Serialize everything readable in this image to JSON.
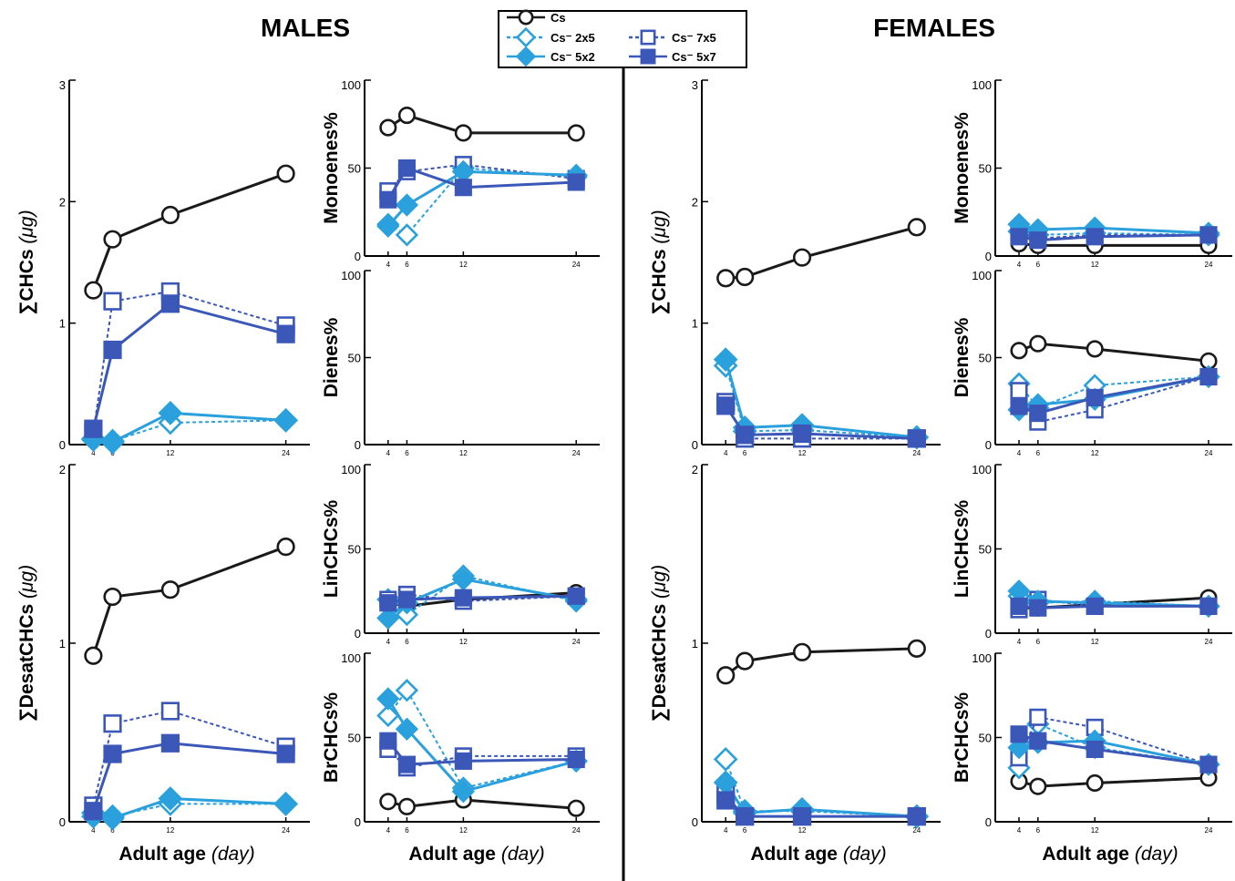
{
  "figure": {
    "titles": {
      "males": "MALES",
      "females": "FEMALES"
    },
    "x_axis_label": "Adult age",
    "x_axis_unit": "(day)"
  },
  "legend": {
    "entries": [
      "Cs",
      "Cs⁻ 2x5",
      "Cs⁻ 7x5",
      "Cs⁻ 5x2",
      "Cs⁻ 5x7"
    ]
  },
  "series_styles": [
    {
      "key": "Cs",
      "color": "#1a1a1a",
      "marker": "circle",
      "fill": false,
      "dashed": false
    },
    {
      "key": "2x5",
      "color": "#2aa0dc",
      "marker": "diamond",
      "fill": false,
      "dashed": true
    },
    {
      "key": "7x5",
      "color": "#3b57b8",
      "marker": "square",
      "fill": false,
      "dashed": true
    },
    {
      "key": "5x2",
      "color": "#2aa0dc",
      "marker": "diamond",
      "fill": true,
      "dashed": false
    },
    {
      "key": "5x7",
      "color": "#3b57b8",
      "marker": "square",
      "fill": true,
      "dashed": false
    }
  ],
  "chart_data": [
    {
      "type": "line",
      "panel": "males-total-chcs",
      "ylabel": "∑CHCs",
      "yunit": "(μg)",
      "x": [
        4,
        6,
        12,
        24
      ],
      "ylim": [
        0,
        3
      ],
      "yticks": [
        "0",
        "1",
        "2",
        "3"
      ],
      "series": [
        {
          "name": "Cs",
          "values": [
            1.27,
            1.69,
            1.89,
            2.23
          ]
        },
        {
          "name": "Cs⁻ 2x5",
          "values": [
            0.05,
            0.03,
            0.18,
            0.2
          ]
        },
        {
          "name": "Cs⁻ 7x5",
          "values": [
            0.1,
            1.18,
            1.26,
            0.98
          ]
        },
        {
          "name": "Cs⁻ 5x2",
          "values": [
            0.04,
            0.02,
            0.26,
            0.2
          ]
        },
        {
          "name": "Cs⁻ 5x7",
          "values": [
            0.13,
            0.78,
            1.16,
            0.91
          ]
        }
      ]
    },
    {
      "type": "line",
      "panel": "males-monoenes",
      "ylabel": "Monoenes%",
      "x": [
        4,
        6,
        12,
        24
      ],
      "ylim": [
        0,
        100
      ],
      "yticks": [
        "0",
        "50",
        "100"
      ],
      "series": [
        {
          "name": "Cs",
          "values": [
            73,
            80,
            70,
            70
          ]
        },
        {
          "name": "Cs⁻ 2x5",
          "values": [
            18,
            12,
            50,
            45
          ]
        },
        {
          "name": "Cs⁻ 7x5",
          "values": [
            37,
            48,
            52,
            44
          ]
        },
        {
          "name": "Cs⁻ 5x2",
          "values": [
            17,
            29,
            48,
            46
          ]
        },
        {
          "name": "Cs⁻ 5x7",
          "values": [
            32,
            50,
            39,
            42
          ]
        }
      ]
    },
    {
      "type": "line",
      "panel": "males-dienes",
      "ylabel": "Dienes%",
      "x": [
        4,
        6,
        12,
        24
      ],
      "ylim": [
        0,
        100
      ],
      "yticks": [
        "0",
        "50",
        "100"
      ],
      "series": []
    },
    {
      "type": "line",
      "panel": "males-desat-chcs",
      "ylabel": "∑DesatCHCs",
      "yunit": "(μg)",
      "x": [
        4,
        6,
        12,
        24
      ],
      "ylim": [
        0,
        2
      ],
      "yticks": [
        "0",
        "1",
        "2"
      ],
      "series": [
        {
          "name": "Cs",
          "values": [
            0.93,
            1.26,
            1.3,
            1.54
          ]
        },
        {
          "name": "Cs⁻ 2x5",
          "values": [
            0.05,
            0.03,
            0.1,
            0.1
          ]
        },
        {
          "name": "Cs⁻ 7x5",
          "values": [
            0.09,
            0.55,
            0.62,
            0.42
          ]
        },
        {
          "name": "Cs⁻ 5x2",
          "values": [
            0.03,
            0.02,
            0.13,
            0.1
          ]
        },
        {
          "name": "Cs⁻ 5x7",
          "values": [
            0.06,
            0.38,
            0.44,
            0.38
          ]
        }
      ]
    },
    {
      "type": "line",
      "panel": "males-lin-chcs",
      "ylabel": "LinCHCs%",
      "x": [
        4,
        6,
        12,
        24
      ],
      "ylim": [
        0,
        100
      ],
      "yticks": [
        "0",
        "50",
        "100"
      ],
      "series": [
        {
          "name": "Cs",
          "values": [
            18,
            16,
            20,
            24
          ]
        },
        {
          "name": "Cs⁻ 2x5",
          "values": [
            20,
            11,
            34,
            19
          ]
        },
        {
          "name": "Cs⁻ 7x5",
          "values": [
            20,
            23,
            19,
            22
          ]
        },
        {
          "name": "Cs⁻ 5x2",
          "values": [
            9,
            18,
            32,
            20
          ]
        },
        {
          "name": "Cs⁻ 5x7",
          "values": [
            18,
            20,
            21,
            22
          ]
        }
      ]
    },
    {
      "type": "line",
      "panel": "males-br-chcs",
      "ylabel": "BrCHCs%",
      "x": [
        4,
        6,
        12,
        24
      ],
      "ylim": [
        0,
        100
      ],
      "yticks": [
        "0",
        "50",
        "100"
      ],
      "series": [
        {
          "name": "Cs",
          "values": [
            12,
            9,
            13,
            8
          ]
        },
        {
          "name": "Cs⁻ 2x5",
          "values": [
            63,
            78,
            20,
            36
          ]
        },
        {
          "name": "Cs⁻ 7x5",
          "values": [
            43,
            32,
            39,
            39
          ]
        },
        {
          "name": "Cs⁻ 5x2",
          "values": [
            73,
            55,
            18,
            36
          ]
        },
        {
          "name": "Cs⁻ 5x7",
          "values": [
            48,
            34,
            36,
            37
          ]
        }
      ]
    },
    {
      "type": "line",
      "panel": "females-total-chcs",
      "ylabel": "∑CHCs",
      "yunit": "(μg)",
      "x": [
        4,
        6,
        12,
        24
      ],
      "ylim": [
        0,
        3
      ],
      "yticks": [
        "0",
        "1",
        "2",
        "3"
      ],
      "series": [
        {
          "name": "Cs",
          "values": [
            1.37,
            1.38,
            1.54,
            1.79
          ]
        },
        {
          "name": "Cs⁻ 2x5",
          "values": [
            0.65,
            0.11,
            0.12,
            0.06
          ]
        },
        {
          "name": "Cs⁻ 7x5",
          "values": [
            0.35,
            0.05,
            0.05,
            0.05
          ]
        },
        {
          "name": "Cs⁻ 5x2",
          "values": [
            0.7,
            0.14,
            0.16,
            0.06
          ]
        },
        {
          "name": "Cs⁻ 5x7",
          "values": [
            0.32,
            0.08,
            0.09,
            0.05
          ]
        }
      ]
    },
    {
      "type": "line",
      "panel": "females-monoenes",
      "ylabel": "Monoenes%",
      "x": [
        4,
        6,
        12,
        24
      ],
      "ylim": [
        0,
        100
      ],
      "yticks": [
        "0",
        "50",
        "100"
      ],
      "series": [
        {
          "name": "Cs",
          "values": [
            7,
            6,
            6,
            6
          ]
        },
        {
          "name": "Cs⁻ 2x5",
          "values": [
            14,
            12,
            13,
            12
          ]
        },
        {
          "name": "Cs⁻ 7x5",
          "values": [
            13,
            10,
            12,
            12
          ]
        },
        {
          "name": "Cs⁻ 5x2",
          "values": [
            18,
            15,
            16,
            13
          ]
        },
        {
          "name": "Cs⁻ 5x7",
          "values": [
            11,
            9,
            11,
            12
          ]
        }
      ]
    },
    {
      "type": "line",
      "panel": "females-dienes",
      "ylabel": "Dienes%",
      "x": [
        4,
        6,
        12,
        24
      ],
      "ylim": [
        0,
        100
      ],
      "yticks": [
        "0",
        "50",
        "100"
      ],
      "series": [
        {
          "name": "Cs",
          "values": [
            54,
            58,
            55,
            48
          ]
        },
        {
          "name": "Cs⁻ 2x5",
          "values": [
            35,
            21,
            34,
            39
          ]
        },
        {
          "name": "Cs⁻ 7x5",
          "values": [
            31,
            13,
            20,
            39
          ]
        },
        {
          "name": "Cs⁻ 5x2",
          "values": [
            20,
            23,
            26,
            39
          ]
        },
        {
          "name": "Cs⁻ 5x7",
          "values": [
            22,
            18,
            27,
            39
          ]
        }
      ]
    },
    {
      "type": "line",
      "panel": "females-desat-chcs",
      "ylabel": "∑DesatCHCs",
      "yunit": "(μg)",
      "x": [
        4,
        6,
        12,
        24
      ],
      "ylim": [
        0,
        2
      ],
      "yticks": [
        "0",
        "1",
        "2"
      ],
      "series": [
        {
          "name": "Cs",
          "values": [
            0.82,
            0.9,
            0.95,
            0.97
          ]
        },
        {
          "name": "Cs⁻ 2x5",
          "values": [
            0.35,
            0.06,
            0.06,
            0.03
          ]
        },
        {
          "name": "Cs⁻ 7x5",
          "values": [
            0.15,
            0.03,
            0.03,
            0.03
          ]
        },
        {
          "name": "Cs⁻ 5x2",
          "values": [
            0.22,
            0.05,
            0.07,
            0.03
          ]
        },
        {
          "name": "Cs⁻ 5x7",
          "values": [
            0.12,
            0.03,
            0.03,
            0.03
          ]
        }
      ]
    },
    {
      "type": "line",
      "panel": "females-lin-chcs",
      "ylabel": "LinCHCs%",
      "x": [
        4,
        6,
        12,
        24
      ],
      "ylim": [
        0,
        100
      ],
      "yticks": [
        "0",
        "50",
        "100"
      ],
      "series": [
        {
          "name": "Cs",
          "values": [
            15,
            15,
            17,
            21
          ]
        },
        {
          "name": "Cs⁻ 2x5",
          "values": [
            22,
            18,
            19,
            16
          ]
        },
        {
          "name": "Cs⁻ 7x5",
          "values": [
            14,
            20,
            16,
            16
          ]
        },
        {
          "name": "Cs⁻ 5x2",
          "values": [
            25,
            19,
            18,
            16
          ]
        },
        {
          "name": "Cs⁻ 5x7",
          "values": [
            16,
            15,
            16,
            16
          ]
        }
      ]
    },
    {
      "type": "line",
      "panel": "females-br-chcs",
      "ylabel": "BrCHCs%",
      "x": [
        4,
        6,
        12,
        24
      ],
      "ylim": [
        0,
        100
      ],
      "yticks": [
        "0",
        "50",
        "100"
      ],
      "series": [
        {
          "name": "Cs",
          "values": [
            24,
            21,
            23,
            26
          ]
        },
        {
          "name": "Cs⁻ 2x5",
          "values": [
            32,
            58,
            44,
            34
          ]
        },
        {
          "name": "Cs⁻ 7x5",
          "values": [
            38,
            62,
            56,
            34
          ]
        },
        {
          "name": "Cs⁻ 5x2",
          "values": [
            44,
            47,
            48,
            34
          ]
        },
        {
          "name": "Cs⁻ 5x7",
          "values": [
            52,
            48,
            43,
            34
          ]
        }
      ]
    }
  ]
}
